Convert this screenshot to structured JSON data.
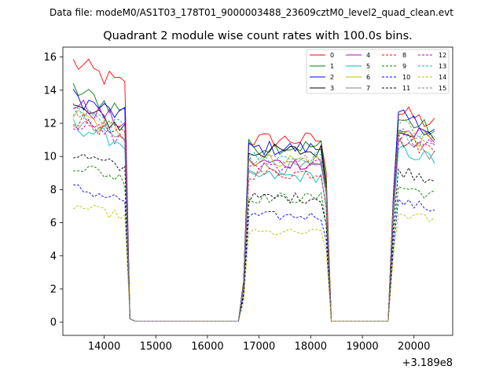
{
  "chart_data": {
    "type": "line",
    "suptitle": "Data file: modeM0/AS1T03_178T01_9000003488_23609cztM0_level2_quad_clean.evt",
    "title": "Quadrant 2 module wise count rates with 100.0s bins.",
    "xlabel": "",
    "ylabel": "",
    "x_offset_label": "+3.189e8",
    "xlim": [
      13200,
      20750
    ],
    "ylim": [
      -0.8,
      16.6
    ],
    "x_ticks": [
      14000,
      15000,
      16000,
      17000,
      18000,
      19000,
      20000
    ],
    "x_tick_labels": [
      "14000",
      "15000",
      "16000",
      "17000",
      "18000",
      "19000",
      "20000"
    ],
    "y_ticks": [
      0,
      2,
      4,
      6,
      8,
      10,
      12,
      14,
      16
    ],
    "y_tick_labels": [
      "0",
      "2",
      "4",
      "6",
      "8",
      "10",
      "12",
      "14",
      "16"
    ],
    "legend_position": "top-right",
    "segments": [
      {
        "start": 13400,
        "end": 14600,
        "ramp_end": [
          0.2,
          0.05
        ]
      },
      {
        "start": 16600,
        "end": 18400,
        "ramp_start": [
          0.05,
          1.8
        ],
        "ramp_end": [
          8,
          0.05
        ]
      },
      {
        "start": 19500,
        "end": 20400,
        "ramp_start": [
          0.05,
          5
        ]
      }
    ],
    "series": [
      {
        "name": "0",
        "color": "#ff0000",
        "style": "solid",
        "levels": [
          14.5,
          11.0,
          12.4
        ]
      },
      {
        "name": "1",
        "color": "#008000",
        "style": "solid",
        "levels": [
          13.0,
          10.6,
          12.0
        ]
      },
      {
        "name": "2",
        "color": "#0000ff",
        "style": "solid",
        "levels": [
          12.6,
          10.5,
          12.1
        ]
      },
      {
        "name": "3",
        "color": "#000000",
        "style": "solid",
        "levels": [
          12.0,
          10.3,
          11.6
        ]
      },
      {
        "name": "4",
        "color": "#bf00bf",
        "style": "solid",
        "levels": [
          12.2,
          9.6,
          11.4
        ]
      },
      {
        "name": "5",
        "color": "#00bfbf",
        "style": "solid",
        "levels": [
          11.0,
          8.8,
          10.2
        ]
      },
      {
        "name": "6",
        "color": "#bfbf00",
        "style": "solid",
        "levels": [
          11.6,
          9.8,
          11.2
        ]
      },
      {
        "name": "7",
        "color": "#808080",
        "style": "solid",
        "levels": [
          11.2,
          9.3,
          10.6
        ]
      },
      {
        "name": "8",
        "color": "#ff0000",
        "style": "dashed",
        "levels": [
          11.4,
          9.0,
          10.8
        ]
      },
      {
        "name": "9",
        "color": "#008000",
        "style": "dashed",
        "levels": [
          8.8,
          7.5,
          8.0
        ]
      },
      {
        "name": "10",
        "color": "#0000ff",
        "style": "dashed",
        "levels": [
          7.5,
          6.4,
          7.1
        ]
      },
      {
        "name": "11",
        "color": "#000000",
        "style": "dashed",
        "levels": [
          9.4,
          7.5,
          9.0
        ]
      },
      {
        "name": "12",
        "color": "#bf00bf",
        "style": "dashed",
        "levels": [
          11.2,
          9.5,
          11.0
        ]
      },
      {
        "name": "13",
        "color": "#00bfbf",
        "style": "dashed",
        "levels": [
          11.8,
          9.9,
          11.3
        ]
      },
      {
        "name": "14",
        "color": "#bfbf00",
        "style": "dashed",
        "levels": [
          6.5,
          5.4,
          6.4
        ]
      },
      {
        "name": "15",
        "color": "#808080",
        "style": "dashed",
        "levels": [
          12.0,
          9.8,
          11.6
        ]
      }
    ]
  }
}
